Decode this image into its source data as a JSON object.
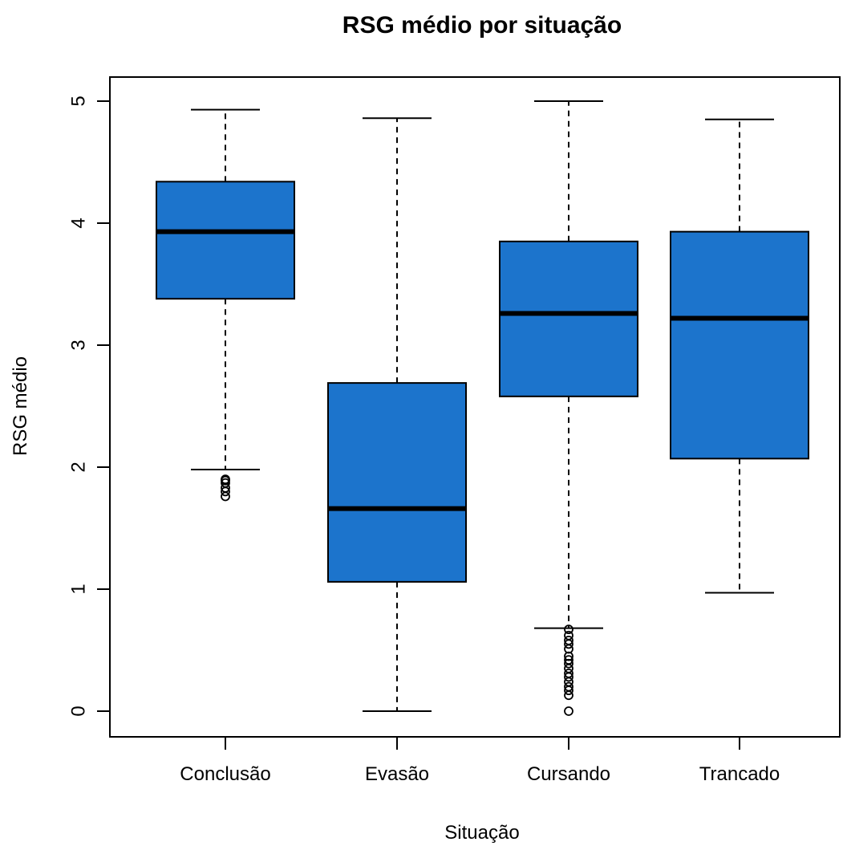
{
  "chart_data": {
    "type": "boxplot",
    "title": "RSG médio por situação",
    "xlabel": "Situação",
    "ylabel": "RSG médio",
    "ylim": [
      0,
      5
    ],
    "yticks": [
      0,
      1,
      2,
      3,
      4,
      5
    ],
    "ytick_labels": [
      "0",
      "1",
      "2",
      "3",
      "4",
      "5"
    ],
    "categories": [
      "Conclusão",
      "Evasão",
      "Cursando",
      "Trancado"
    ],
    "box_color": "#1c74cc",
    "grid": false,
    "legend": "none",
    "boxes": [
      {
        "category": "Conclusão",
        "whisker_low": 1.98,
        "q1": 3.38,
        "median": 3.93,
        "q3": 4.34,
        "whisker_high": 4.93,
        "outliers": [
          1.76,
          1.8,
          1.83,
          1.87,
          1.89,
          1.9
        ]
      },
      {
        "category": "Evasão",
        "whisker_low": 0.0,
        "q1": 1.06,
        "median": 1.66,
        "q3": 2.69,
        "whisker_high": 4.86,
        "outliers": []
      },
      {
        "category": "Cursando",
        "whisker_low": 0.68,
        "q1": 2.58,
        "median": 3.26,
        "q3": 3.85,
        "whisker_high": 5.0,
        "outliers": [
          0.67,
          0.62,
          0.58,
          0.55,
          0.51,
          0.45,
          0.42,
          0.39,
          0.35,
          0.31,
          0.28,
          0.24,
          0.2,
          0.17,
          0.13,
          0.0
        ]
      },
      {
        "category": "Trancado",
        "whisker_low": 0.97,
        "q1": 2.07,
        "median": 3.22,
        "q3": 3.93,
        "whisker_high": 4.85,
        "outliers": []
      }
    ]
  }
}
